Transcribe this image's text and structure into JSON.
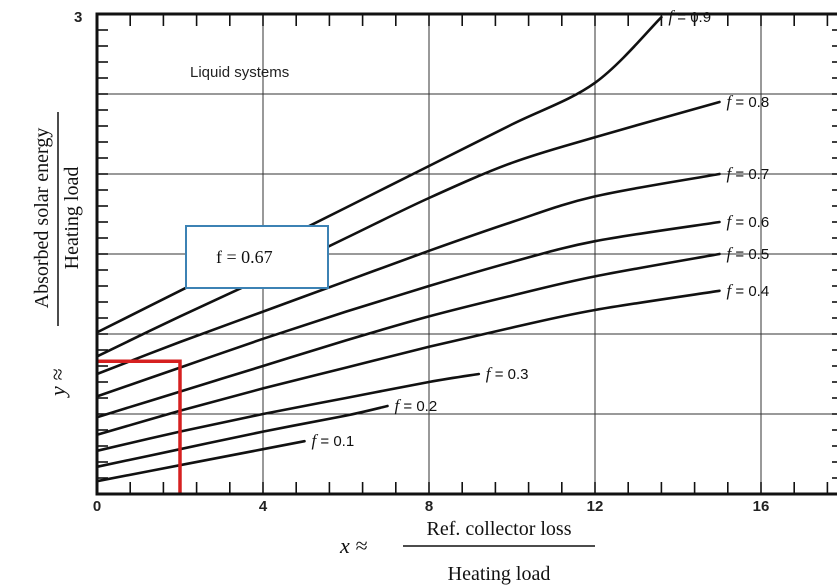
{
  "chart_data": {
    "type": "line",
    "title": "Liquid systems",
    "xlabel": {
      "prefix": "x ≈",
      "numerator": "Ref. collector loss",
      "denominator": "Heating load"
    },
    "ylabel": {
      "prefix": "y ≈",
      "numerator": "Absorbed solar energy",
      "denominator": "Heating load"
    },
    "xlim": [
      0,
      18
    ],
    "ylim": [
      0,
      3
    ],
    "x_ticks": [
      "0",
      "4",
      "8",
      "12",
      "16"
    ],
    "y_ticks": [
      "3"
    ],
    "grid": true,
    "series": [
      {
        "name": "f = 0.9",
        "label_f": "f",
        "label_value": "= 0.9",
        "x": [
          0,
          2,
          4,
          6,
          8,
          10,
          12,
          13.6
        ],
        "y": [
          1.01,
          1.27,
          1.53,
          1.79,
          2.05,
          2.31,
          2.57,
          2.98
        ]
      },
      {
        "name": "f = 0.8",
        "label_f": "f",
        "label_value": "= 0.8",
        "x": [
          0,
          2,
          4,
          6,
          8,
          10,
          12,
          15
        ],
        "y": [
          0.86,
          1.11,
          1.35,
          1.6,
          1.85,
          2.07,
          2.23,
          2.45
        ]
      },
      {
        "name": "f = 0.7",
        "label_f": "f",
        "label_value": "= 0.7",
        "x": [
          0,
          2,
          4,
          6,
          8,
          10,
          12,
          15
        ],
        "y": [
          0.75,
          0.95,
          1.14,
          1.33,
          1.52,
          1.7,
          1.86,
          2.0
        ]
      },
      {
        "name": "f = 0.6",
        "label_f": "f",
        "label_value": "= 0.6",
        "x": [
          0,
          2,
          4,
          6,
          8,
          10,
          12,
          15
        ],
        "y": [
          0.61,
          0.79,
          0.97,
          1.14,
          1.3,
          1.45,
          1.58,
          1.7
        ]
      },
      {
        "name": "f = 0.5",
        "label_f": "f",
        "label_value": "= 0.5",
        "x": [
          0,
          2,
          4,
          6,
          8,
          10,
          12,
          15
        ],
        "y": [
          0.48,
          0.64,
          0.8,
          0.96,
          1.11,
          1.24,
          1.36,
          1.5
        ]
      },
      {
        "name": "f = 0.4",
        "label_f": "f",
        "label_value": "= 0.4",
        "x": [
          0,
          2,
          4,
          6,
          8,
          10,
          12,
          15
        ],
        "y": [
          0.37,
          0.52,
          0.66,
          0.79,
          0.92,
          1.04,
          1.15,
          1.27
        ]
      },
      {
        "name": "f = 0.3",
        "label_f": "f",
        "label_value": "= 0.3",
        "x": [
          0,
          2,
          4,
          6,
          8,
          9.2
        ],
        "y": [
          0.27,
          0.39,
          0.5,
          0.6,
          0.7,
          0.75
        ]
      },
      {
        "name": "f = 0.2",
        "label_f": "f",
        "label_value": "= 0.2",
        "x": [
          0,
          2,
          4,
          6,
          7.0
        ],
        "y": [
          0.17,
          0.28,
          0.39,
          0.49,
          0.55
        ]
      },
      {
        "name": "f = 0.1",
        "label_f": "f",
        "label_value": "= 0.1",
        "x": [
          0,
          2,
          4,
          5.0
        ],
        "y": [
          0.08,
          0.18,
          0.28,
          0.33
        ]
      }
    ],
    "annotation": {
      "text": "f = 0.67",
      "marker_x": 2.0,
      "marker_y": 0.83,
      "marker_color": "#d62020",
      "box_border_color": "#3c82b4"
    }
  }
}
